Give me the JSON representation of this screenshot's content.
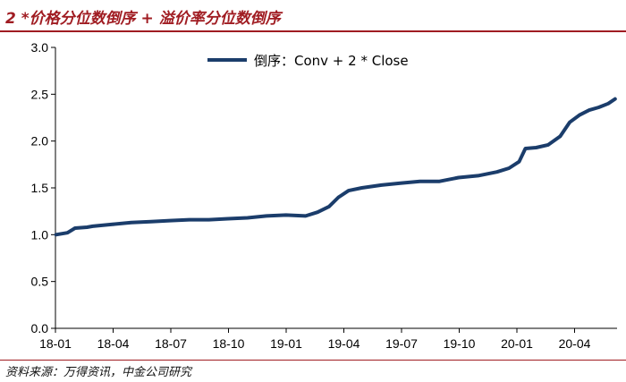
{
  "header": {
    "title": "2 *价格分位数倒序 + 溢价率分位数倒序"
  },
  "footer": {
    "source": "资料来源：万得资讯，中金公司研究"
  },
  "colors": {
    "accent": "#a01c22",
    "series": "#1b3d6b"
  },
  "chart_data": {
    "type": "line",
    "title": "",
    "xlabel": "",
    "ylabel": "",
    "ylim": [
      0,
      3.0
    ],
    "yticks": [
      "0.0",
      "0.5",
      "1.0",
      "1.5",
      "2.0",
      "2.5",
      "3.0"
    ],
    "xticks": [
      "18-01",
      "18-04",
      "18-07",
      "18-10",
      "19-01",
      "19-04",
      "19-07",
      "19-10",
      "20-01",
      "20-04"
    ],
    "legend_position": "top-center",
    "grid": false,
    "series": [
      {
        "name": "倒序：Conv + 2 * Close",
        "points": [
          [
            "2018-01-02",
            1.0
          ],
          [
            "2018-01-20",
            1.02
          ],
          [
            "2018-02-01",
            1.07
          ],
          [
            "2018-02-20",
            1.08
          ],
          [
            "2018-03-01",
            1.09
          ],
          [
            "2018-04-01",
            1.11
          ],
          [
            "2018-05-01",
            1.13
          ],
          [
            "2018-06-01",
            1.14
          ],
          [
            "2018-07-01",
            1.15
          ],
          [
            "2018-08-01",
            1.16
          ],
          [
            "2018-09-01",
            1.16
          ],
          [
            "2018-10-01",
            1.17
          ],
          [
            "2018-11-01",
            1.18
          ],
          [
            "2018-12-01",
            1.2
          ],
          [
            "2019-01-01",
            1.21
          ],
          [
            "2019-02-01",
            1.2
          ],
          [
            "2019-02-20",
            1.24
          ],
          [
            "2019-03-10",
            1.3
          ],
          [
            "2019-03-25",
            1.4
          ],
          [
            "2019-04-10",
            1.47
          ],
          [
            "2019-05-01",
            1.5
          ],
          [
            "2019-06-01",
            1.53
          ],
          [
            "2019-07-01",
            1.55
          ],
          [
            "2019-08-01",
            1.57
          ],
          [
            "2019-09-01",
            1.57
          ],
          [
            "2019-10-01",
            1.61
          ],
          [
            "2019-11-01",
            1.63
          ],
          [
            "2019-12-01",
            1.67
          ],
          [
            "2019-12-20",
            1.71
          ],
          [
            "2020-01-05",
            1.78
          ],
          [
            "2020-01-15",
            1.92
          ],
          [
            "2020-02-01",
            1.93
          ],
          [
            "2020-02-20",
            1.96
          ],
          [
            "2020-03-10",
            2.05
          ],
          [
            "2020-03-25",
            2.2
          ],
          [
            "2020-04-10",
            2.28
          ],
          [
            "2020-04-25",
            2.33
          ],
          [
            "2020-05-10",
            2.36
          ],
          [
            "2020-05-25",
            2.4
          ],
          [
            "2020-06-05",
            2.45
          ]
        ]
      }
    ]
  }
}
